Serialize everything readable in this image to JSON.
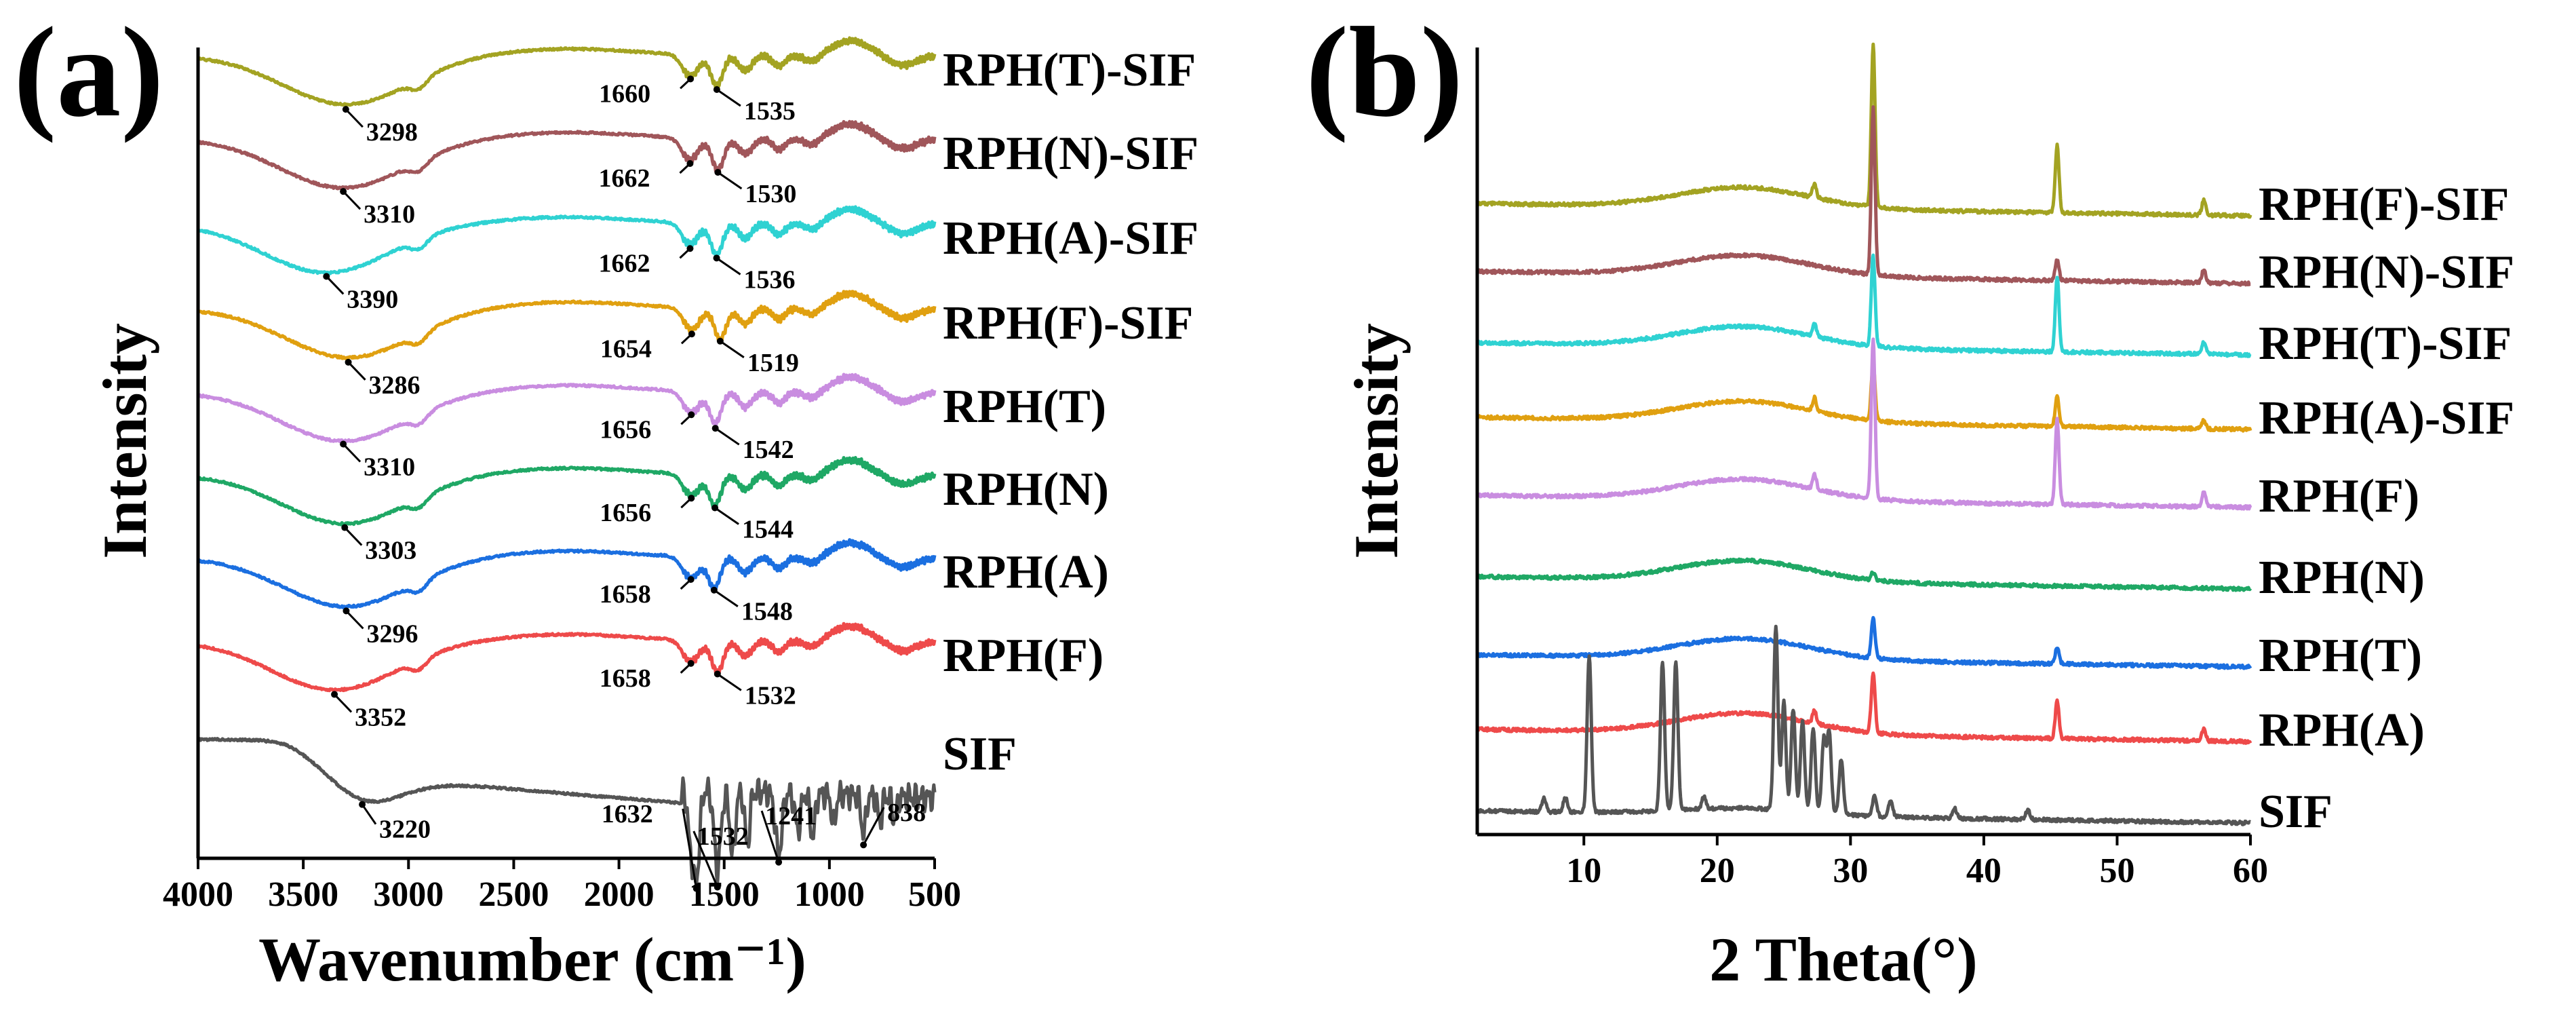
{
  "chart_data": [
    {
      "type": "line",
      "panel_label": "(a)",
      "xlabel": "Wavenumber (cm⁻¹)",
      "ylabel": "Intensity",
      "xlim": [
        4000,
        500
      ],
      "x_reversed": true,
      "x_ticks": [
        "4000",
        "3500",
        "3000",
        "2500",
        "2000",
        "1500",
        "1000",
        "500"
      ],
      "y_ticks": false,
      "grid": false,
      "legend": "series labels at right end of each curve",
      "series": [
        {
          "name": "RPH(T)-SIF",
          "color": "#a3a322",
          "peaks": [
            {
              "x": 3298,
              "label": "3298"
            },
            {
              "x": 1660,
              "label": "1660"
            },
            {
              "x": 1535,
              "label": "1535"
            }
          ]
        },
        {
          "name": "RPH(N)-SIF",
          "color": "#a0565a",
          "peaks": [
            {
              "x": 3310,
              "label": "3310"
            },
            {
              "x": 1662,
              "label": "1662"
            },
            {
              "x": 1530,
              "label": "1530"
            }
          ]
        },
        {
          "name": "RPH(A)-SIF",
          "color": "#2fd2d2",
          "peaks": [
            {
              "x": 3390,
              "label": "3390"
            },
            {
              "x": 1662,
              "label": "1662"
            },
            {
              "x": 1536,
              "label": "1536"
            }
          ]
        },
        {
          "name": "RPH(F)-SIF",
          "color": "#e0a010",
          "peaks": [
            {
              "x": 3286,
              "label": "3286"
            },
            {
              "x": 1654,
              "label": "1654"
            },
            {
              "x": 1519,
              "label": "1519"
            }
          ]
        },
        {
          "name": "RPH(T)",
          "color": "#c98de0",
          "peaks": [
            {
              "x": 3310,
              "label": "3310"
            },
            {
              "x": 1656,
              "label": "1656"
            },
            {
              "x": 1542,
              "label": "1542"
            }
          ]
        },
        {
          "name": "RPH(N)",
          "color": "#1fa865",
          "peaks": [
            {
              "x": 3303,
              "label": "3303"
            },
            {
              "x": 1656,
              "label": "1656"
            },
            {
              "x": 1544,
              "label": "1544"
            }
          ]
        },
        {
          "name": "RPH(A)",
          "color": "#1b6fe0",
          "peaks": [
            {
              "x": 3296,
              "label": "3296"
            },
            {
              "x": 1658,
              "label": "1658"
            },
            {
              "x": 1548,
              "label": "1548"
            }
          ]
        },
        {
          "name": "RPH(F)",
          "color": "#ee4a4a",
          "peaks": [
            {
              "x": 3352,
              "label": "3352"
            },
            {
              "x": 1658,
              "label": "1658"
            },
            {
              "x": 1532,
              "label": "1532"
            }
          ]
        },
        {
          "name": "SIF",
          "color": "#555555",
          "peaks": [
            {
              "x": 3220,
              "label": "3220"
            },
            {
              "x": 1632,
              "label": "1632"
            },
            {
              "x": 1532,
              "label": "1532"
            },
            {
              "x": 1241,
              "label": "1241"
            },
            {
              "x": 838,
              "label": "838"
            }
          ]
        }
      ]
    },
    {
      "type": "line",
      "panel_label": "(b)",
      "xlabel": "2 Theta(°)",
      "ylabel": "Intensity",
      "xlim": [
        2,
        60
      ],
      "x_ticks": [
        "10",
        "20",
        "30",
        "40",
        "50",
        "60"
      ],
      "y_ticks": false,
      "grid": false,
      "legend": "series labels at right end of each curve",
      "series": [
        {
          "name": "RPH(F)-SIF",
          "color": "#a3a322",
          "peaks": [
            27.3,
            31.7,
            45.5,
            56.5
          ]
        },
        {
          "name": "RPH(N)-SIF",
          "color": "#a0565a",
          "peaks": [
            31.7,
            45.5,
            56.5
          ]
        },
        {
          "name": "RPH(T)-SIF",
          "color": "#2fd2d2",
          "peaks": [
            27.3,
            31.7,
            45.5,
            56.5
          ]
        },
        {
          "name": "RPH(A)-SIF",
          "color": "#e0a010",
          "peaks": [
            27.3,
            31.7,
            45.5,
            56.5
          ]
        },
        {
          "name": "RPH(F)",
          "color": "#c98de0",
          "peaks": [
            27.3,
            31.7,
            45.5,
            56.5
          ]
        },
        {
          "name": "RPH(N)",
          "color": "#1fa865",
          "peaks": [
            31.7
          ]
        },
        {
          "name": "RPH(T)",
          "color": "#1b6fe0",
          "peaks": [
            31.7,
            45.5
          ]
        },
        {
          "name": "RPH(A)",
          "color": "#ee4a4a",
          "peaks": [
            27.3,
            31.7,
            45.5,
            56.5
          ]
        },
        {
          "name": "SIF",
          "color": "#555555",
          "peaks": [
            7.0,
            8.6,
            10.4,
            15.9,
            16.9,
            19.0,
            24.4,
            25.0,
            25.7,
            26.4,
            27.2,
            28.0,
            28.4,
            29.3,
            31.8,
            33.0,
            37.8,
            43.3
          ]
        }
      ]
    }
  ]
}
